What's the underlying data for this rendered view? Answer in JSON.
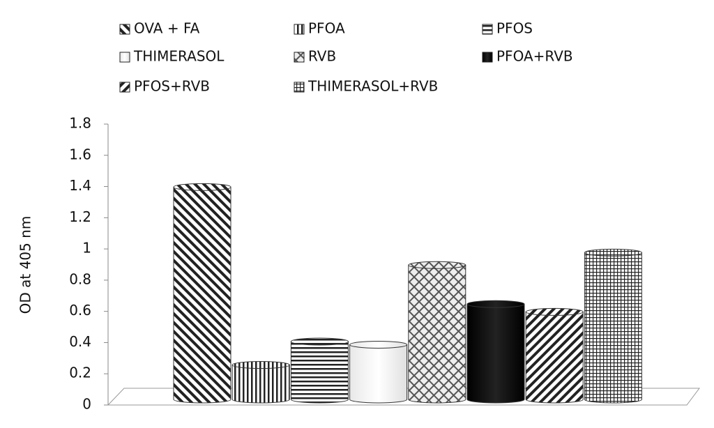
{
  "chart_data": {
    "type": "cylinder-bar",
    "y_label": "OD at 405 nm",
    "categories": [
      null
    ],
    "series": [
      {
        "name": "OVA + FA",
        "pattern": "diagonal-down",
        "values": [
          1.41
        ]
      },
      {
        "name": "PFOA",
        "pattern": "vertical",
        "values": [
          0.27
        ]
      },
      {
        "name": "PFOS",
        "pattern": "horizontal",
        "values": [
          0.42
        ]
      },
      {
        "name": "THIMERASOL",
        "pattern": "none",
        "values": [
          0.4
        ]
      },
      {
        "name": "RVB",
        "pattern": "crosshatch",
        "values": [
          0.91
        ]
      },
      {
        "name": "PFOA+RVB",
        "pattern": "solid",
        "values": [
          0.66
        ]
      },
      {
        "name": "PFOS+RVB",
        "pattern": "diagonal-up",
        "values": [
          0.61
        ]
      },
      {
        "name": "THIMERASOL+RVB",
        "pattern": "grid",
        "values": [
          0.99
        ]
      }
    ],
    "ylim": [
      0,
      1.8
    ],
    "yticks": [
      0,
      0.2,
      0.4,
      0.6,
      0.8,
      1,
      1.2,
      1.4,
      1.6,
      1.8
    ],
    "legend": "top"
  }
}
